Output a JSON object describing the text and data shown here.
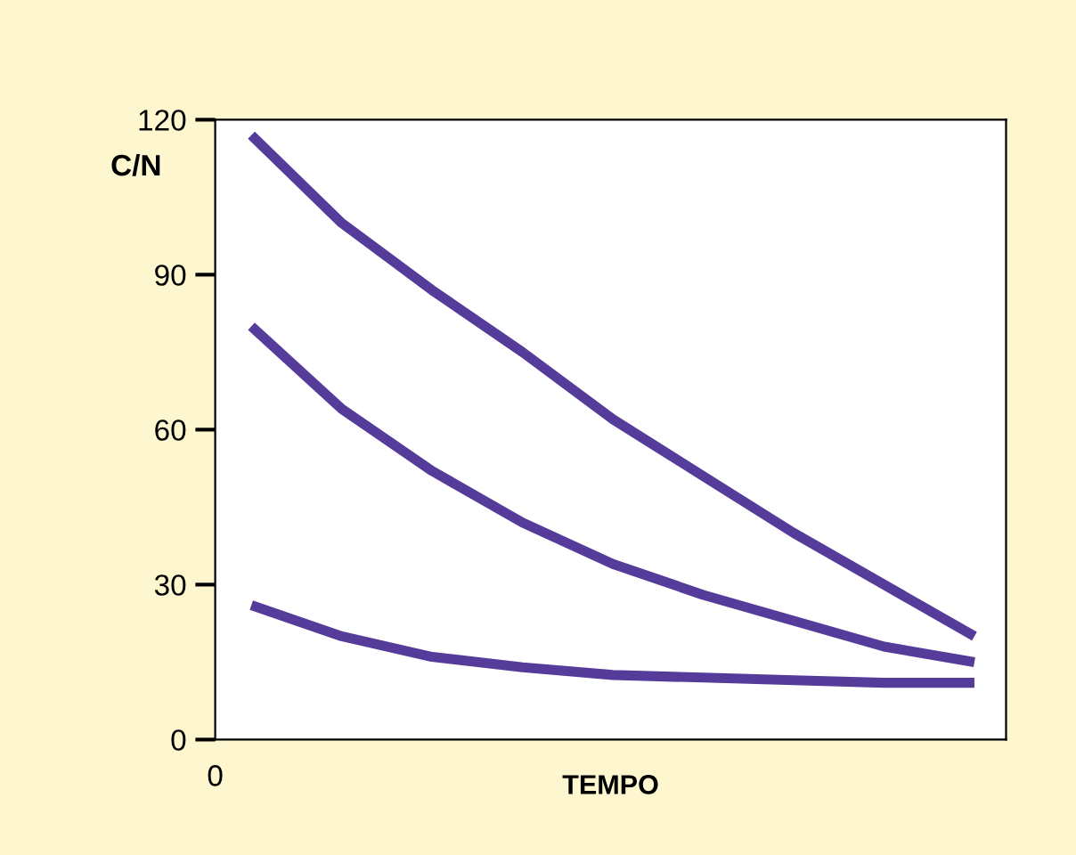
{
  "chart_data": {
    "type": "line",
    "xlabel": "TEMPO",
    "ylabel": "C/N",
    "categories": [
      null,
      null,
      null,
      null,
      null,
      null,
      null,
      null,
      null
    ],
    "series": [
      {
        "color": "#563c9a",
        "values": [
          117,
          100,
          87,
          75,
          62,
          51,
          40,
          30,
          20
        ]
      },
      {
        "color": "#563c9a",
        "values": [
          80,
          64,
          52,
          42,
          34,
          28,
          23,
          18,
          15
        ]
      },
      {
        "color": "#563c9a",
        "values": [
          26,
          20,
          16,
          14,
          12.5,
          12,
          11.5,
          11,
          11
        ]
      }
    ],
    "ylim": [
      0,
      120
    ],
    "yticks": [
      0,
      30,
      60,
      90,
      120
    ],
    "grid": false,
    "legend": false,
    "marker": "none",
    "line_style": "solid",
    "annotations": [
      "0"
    ]
  }
}
